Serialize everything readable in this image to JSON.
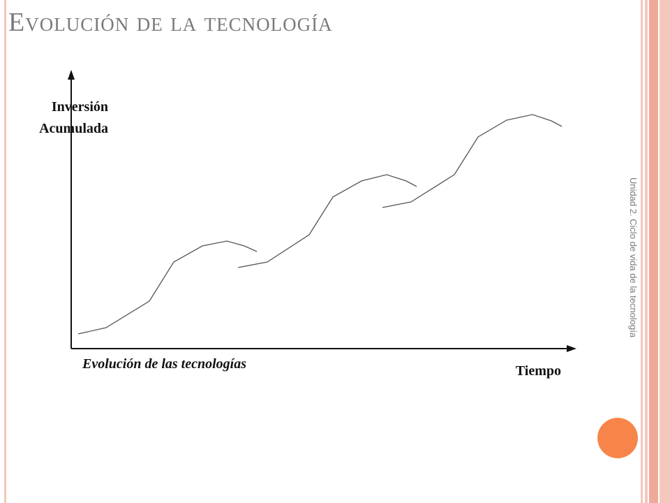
{
  "slide": {
    "title": "Evolución de la tecnología",
    "side_label": "Unidad 2. Ciclo de vida de la tecnología"
  },
  "diagram": {
    "y_axis_label_line1": "Inversión",
    "y_axis_label_line2": "Acumulada",
    "x_axis_label": "Tiempo",
    "caption": "Evolución de las tecnologías",
    "curve_count": 3
  },
  "colors": {
    "accent_orange": "#f7854a",
    "stripe_pink": "#f4c7bd",
    "stripe_salmon": "#f0a998",
    "title_gray": "#7a7a7a"
  }
}
